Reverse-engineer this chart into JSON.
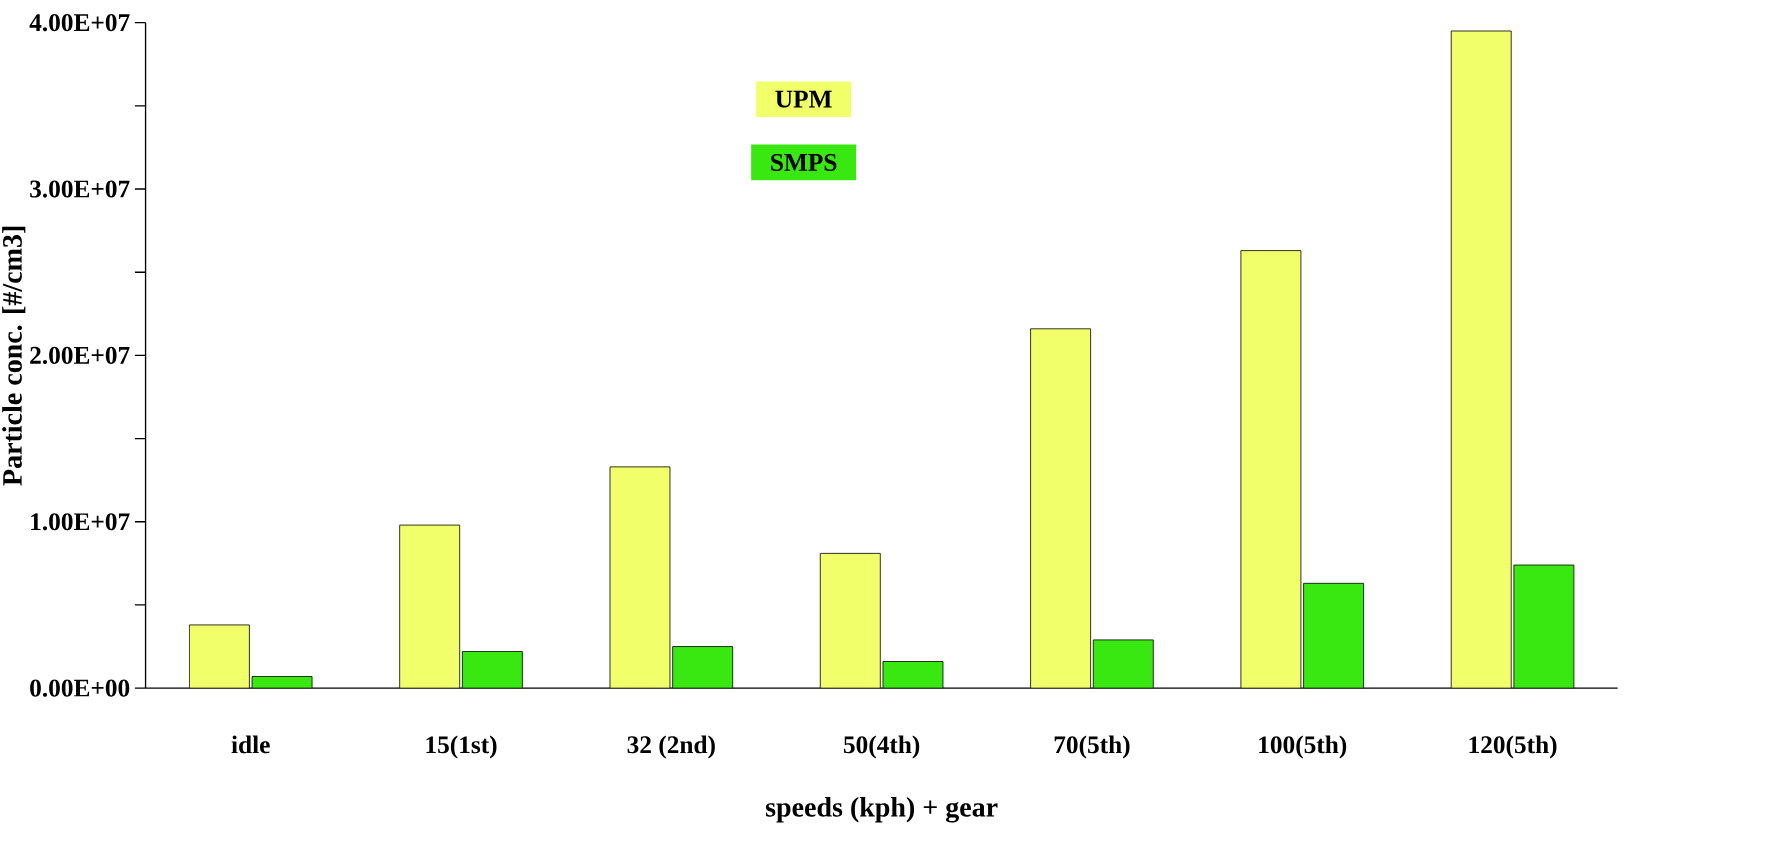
{
  "chart_data": {
    "type": "bar",
    "xlabel": "speeds (kph) + gear",
    "ylabel": "Particle conc. [#/cm3]",
    "categories": [
      "idle",
      "15(1st)",
      "32 (2nd)",
      "50(4th)",
      "70(5th)",
      "100(5th)",
      "120(5th)"
    ],
    "series": [
      {
        "name": "UPM",
        "color": "#f0ff6a",
        "values": [
          3800000,
          9800000,
          13300000,
          8100000,
          21600000,
          26300000,
          39500000
        ]
      },
      {
        "name": "SMPS",
        "color": "#38e810",
        "values": [
          700000,
          2200000,
          2500000,
          1600000,
          2900000,
          6300000,
          7400000
        ]
      }
    ],
    "ylim": [
      0,
      40000000
    ],
    "yticks": [
      {
        "value": 0,
        "label": "0.00E+00"
      },
      {
        "value": 5000000,
        "label": null
      },
      {
        "value": 10000000,
        "label": "1.00E+07"
      },
      {
        "value": 15000000,
        "label": null
      },
      {
        "value": 20000000,
        "label": "2.00E+07"
      },
      {
        "value": 25000000,
        "label": null
      },
      {
        "value": 30000000,
        "label": "3.00E+07"
      },
      {
        "value": 35000000,
        "label": null
      },
      {
        "value": 40000000,
        "label": "4.00E+07"
      }
    ],
    "grid": false,
    "legend": "top"
  }
}
